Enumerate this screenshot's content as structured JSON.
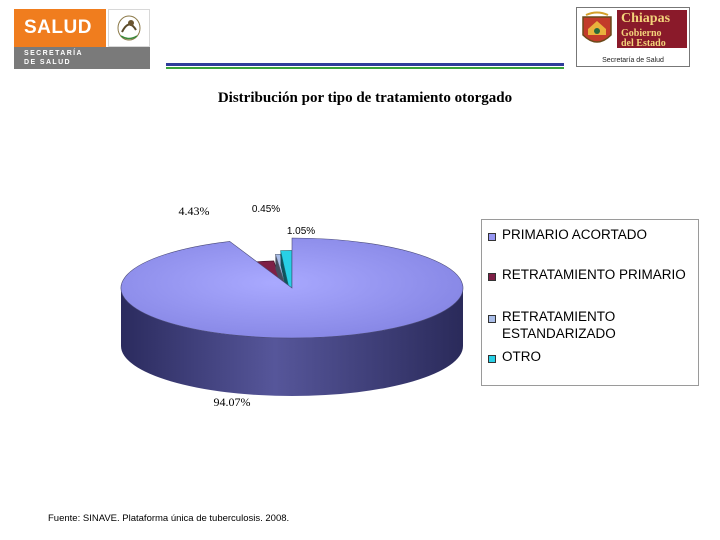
{
  "header": {
    "left_logo": {
      "word": "SALUD",
      "line1": "SECRETARÍA",
      "line2": "DE SALUD",
      "colors": {
        "orange": "#f07d1e",
        "gray": "#7a7a7a"
      }
    },
    "right_logo": {
      "line1": "Chiapas",
      "line2": "Gobierno",
      "line3": "del Estado",
      "footer": "Secretaría de Salud",
      "colors": {
        "maroon": "#8a1a2a",
        "gold": "#f3d27a"
      }
    },
    "rule_colors": [
      "#2f3c9a",
      "#3aa33a"
    ]
  },
  "chart_data": {
    "type": "pie",
    "style": "3d-exploded",
    "title": "Distribución por tipo de tratamiento otorgado",
    "categories": [
      "PRIMARIO ACORTADO",
      "RETRATAMIENTO PRIMARIO",
      "RETRATAMIENTO ESTANDARIZADO",
      "OTRO"
    ],
    "values": [
      94.07,
      4.43,
      0.45,
      1.05
    ],
    "value_labels": [
      "94.07%",
      "4.43%",
      "0.45%",
      "1.05%"
    ],
    "colors": [
      "#9696f2",
      "#7e1f46",
      "#a9bde8",
      "#28d0e6"
    ],
    "legend": {
      "position": "right"
    }
  },
  "source": "Fuente: SINAVE. Plataforma única de tuberculosis. 2008."
}
